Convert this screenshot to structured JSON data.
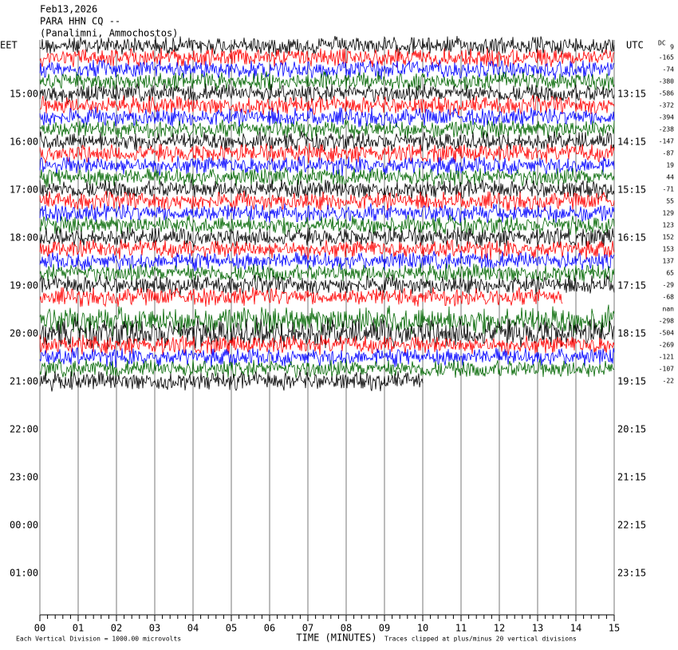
{
  "header": {
    "date": "Feb13,2026",
    "station": "PARA HHN CQ --",
    "location": "(Panalimni, Ammochostos)",
    "left_zone": "EET",
    "right_zone": "UTC",
    "dc_label": "DC"
  },
  "left_labels": [
    "15:00",
    "16:00",
    "17:00",
    "18:00",
    "19:00",
    "20:00",
    "21:00",
    "22:00",
    "23:00",
    "00:00",
    "01:00"
  ],
  "right_labels": [
    "13:15",
    "14:15",
    "15:15",
    "16:15",
    "17:15",
    "18:15",
    "19:15",
    "20:15",
    "21:15",
    "22:15",
    "23:15"
  ],
  "dc_offsets": [
    9,
    -165,
    -74,
    -380,
    -586,
    -372,
    -394,
    -238,
    -147,
    -87,
    19,
    44,
    -71,
    55,
    129,
    123,
    152,
    153,
    137,
    65,
    -29,
    -68,
    "nan",
    -298,
    -504,
    -269,
    -121,
    -107,
    -22
  ],
  "x_ticks": [
    "00",
    "01",
    "02",
    "03",
    "04",
    "05",
    "06",
    "07",
    "08",
    "09",
    "10",
    "11",
    "12",
    "13",
    "14",
    "15"
  ],
  "footer": {
    "scale_note": "Each Vertical Division = 1000.00 microvolts",
    "x_label": "TIME (MINUTES)",
    "clip_note": "Traces clipped at plus/minus 20 vertical divisions"
  }
}
